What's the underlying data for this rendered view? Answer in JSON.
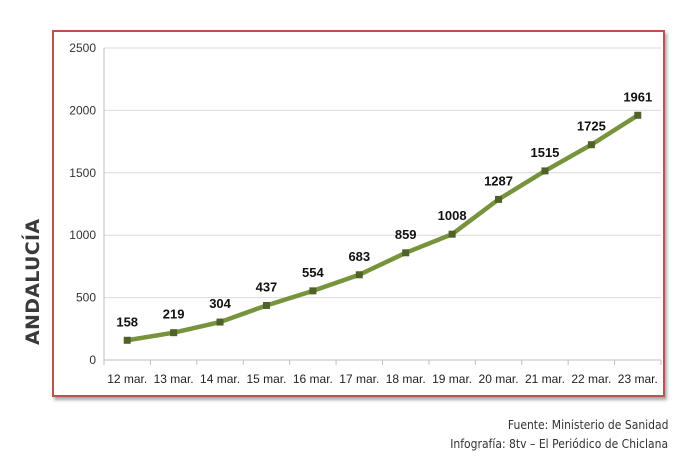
{
  "region_label": "ANDALUCÍA",
  "credits": {
    "source": "Fuente: Ministerio de Sanidad",
    "infographic": "Infografía: 8tv – El Periódico de Chiclana"
  },
  "colors": {
    "line": "#77933c",
    "marker": "#4f6228",
    "frame_border": "#b85450",
    "grid": "#d9d9d9"
  },
  "chart_data": {
    "type": "line",
    "title": "",
    "xlabel": "",
    "ylabel": "",
    "categories": [
      "12 mar.",
      "13 mar.",
      "14 mar.",
      "15 mar.",
      "16 mar.",
      "17 mar.",
      "18 mar.",
      "19 mar.",
      "20 mar.",
      "21 mar.",
      "22 mar.",
      "23 mar."
    ],
    "values": [
      158,
      219,
      304,
      437,
      554,
      683,
      859,
      1008,
      1287,
      1515,
      1725,
      1961
    ],
    "ylim": [
      0,
      2500
    ],
    "yticks": [
      0,
      500,
      1000,
      1500,
      2000,
      2500
    ],
    "grid": true,
    "legend": "none",
    "data_labels": true
  }
}
